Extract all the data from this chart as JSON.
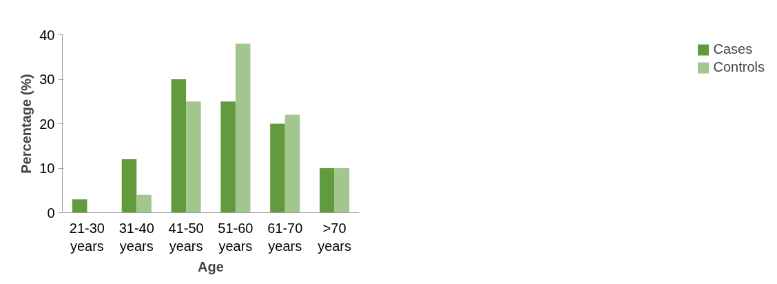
{
  "chart_data": {
    "type": "bar",
    "xlabel": "Age",
    "ylabel": "Percentage (%)",
    "categories": [
      "21-30\nyears",
      "31-40\nyears",
      "41-50\nyears",
      "51-60\nyears",
      "61-70\nyears",
      ">70\nyears"
    ],
    "series": [
      {
        "name": "Cases",
        "color": "#629a3e",
        "values": [
          3,
          12,
          30,
          25,
          20,
          10
        ]
      },
      {
        "name": "Controls",
        "color": "#a2c68e",
        "values": [
          0,
          4,
          25,
          38,
          22,
          10
        ]
      }
    ],
    "ylim": [
      0,
      40
    ],
    "yticks": [
      0,
      10,
      20,
      30,
      40
    ],
    "grid": false,
    "legend": "right"
  }
}
